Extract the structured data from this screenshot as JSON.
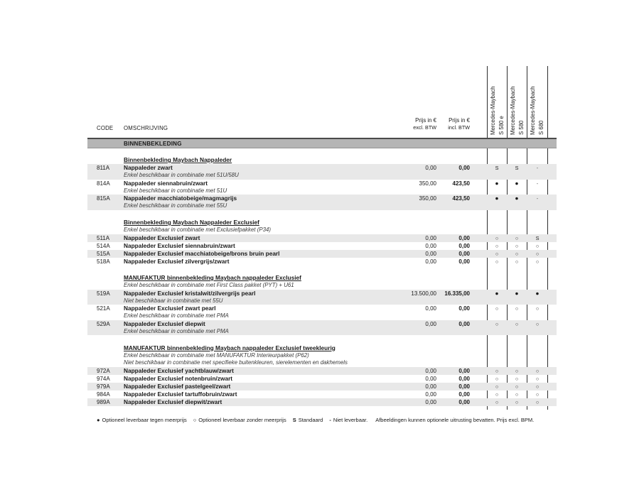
{
  "table_header": {
    "code": "CODE",
    "omschrijving": "OMSCHRIJVING",
    "price_excl": {
      "line1": "Prijs in €",
      "line2": "excl. BTW"
    },
    "price_incl": {
      "line1": "Prijs in €",
      "line2": "incl. BTW"
    },
    "models": [
      {
        "brand": "Mercedes-Maybach",
        "model": "S 580 e"
      },
      {
        "brand": "Mercedes-Maybach",
        "model": "S 580"
      },
      {
        "brand": "Mercedes-Maybach",
        "model": "S 680"
      }
    ]
  },
  "section_bar": {
    "label": "BINNENBEKLEDING"
  },
  "sections": [
    {
      "title": "Binnenbekleding Maybach Nappaleder",
      "notes": [],
      "rows": [
        {
          "code": "811A",
          "name": "Nappaleder zwart",
          "note": "Enkel beschikbaar in combinatie met 51U/58U",
          "excl": "0,00",
          "incl": "0,00",
          "availability": [
            "S",
            "S",
            "-"
          ],
          "shaded": true
        },
        {
          "code": "814A",
          "name": "Nappaleder siennabruin/zwart",
          "note": "Enkel beschikbaar in combinatie met 51U",
          "excl": "350,00",
          "incl": "423,50",
          "availability": [
            "●",
            "●",
            "-"
          ],
          "shaded": false
        },
        {
          "code": "815A",
          "name": "Nappaleder macchiatobeige/magmagrijs",
          "note": "Enkel beschikbaar in combinatie met 55U",
          "excl": "350,00",
          "incl": "423,50",
          "availability": [
            "●",
            "●",
            "-"
          ],
          "shaded": true
        }
      ]
    },
    {
      "title": "Binnenbekleding Maybach Nappaleder Exclusief",
      "notes": [
        "Enkel beschikbaar in combinatie met Exclusiefpakket (P34)"
      ],
      "rows": [
        {
          "code": "511A",
          "name": "Nappaleder Exclusief zwart",
          "note": "",
          "excl": "0,00",
          "incl": "0,00",
          "availability": [
            "○",
            "○",
            "S"
          ],
          "shaded": true
        },
        {
          "code": "514A",
          "name": "Nappaleder Exclusief siennabruin/zwart",
          "note": "",
          "excl": "0,00",
          "incl": "0,00",
          "availability": [
            "○",
            "○",
            "○"
          ],
          "shaded": false
        },
        {
          "code": "515A",
          "name": "Nappaleder Exclusief macchiatobeige/brons bruin pearl",
          "note": "",
          "excl": "0,00",
          "incl": "0,00",
          "availability": [
            "○",
            "○",
            "○"
          ],
          "shaded": true
        },
        {
          "code": "518A",
          "name": "Nappaleder Exclusief zilvergrijs/zwart",
          "note": "",
          "excl": "0,00",
          "incl": "0,00",
          "availability": [
            "○",
            "○",
            "○"
          ],
          "shaded": false
        }
      ]
    },
    {
      "title": "MANUFAKTUR binnenbekleding Maybach nappaleder Exclusief",
      "notes": [
        "Enkel beschikbaar in combinatie met First Class pakket (PYT) + U61"
      ],
      "rows": [
        {
          "code": "519A",
          "name": "Nappaleder Exclusief kristalwit/zilvergrijs pearl",
          "note": "Niet beschikbaar in combinatie met 55U",
          "excl": "13.500,00",
          "incl": "16.335,00",
          "availability": [
            "●",
            "●",
            "●"
          ],
          "shaded": true
        },
        {
          "code": "521A",
          "name": "Nappaleder Exclusief zwart pearl",
          "note": "Enkel beschikbaar in combinatie met PMA",
          "excl": "0,00",
          "incl": "0,00",
          "availability": [
            "○",
            "○",
            "○"
          ],
          "shaded": false
        },
        {
          "code": "529A",
          "name": "Nappaleder Exclusief diepwit",
          "note": "Enkel beschikbaar in combinatie met PMA",
          "excl": "0,00",
          "incl": "0,00",
          "availability": [
            "○",
            "○",
            "○"
          ],
          "shaded": true
        }
      ]
    },
    {
      "title": "MANUFAKTUR binnenbekleding Maybach nappaleder Exclusief tweekleurig",
      "notes": [
        "Enkel beschikbaar in combinatie met MANUFAKTUR Interieurpakket (P62)",
        "Niet beschikbaar in combinatie met specifieke buitenkleuren, sierelementen en dakhemels"
      ],
      "rows": [
        {
          "code": "972A",
          "name": "Nappaleder Exclusief yachtblauw/zwart",
          "note": "",
          "excl": "0,00",
          "incl": "0,00",
          "availability": [
            "○",
            "○",
            "○"
          ],
          "shaded": true
        },
        {
          "code": "974A",
          "name": "Nappaleder Exclusief notenbruin/zwart",
          "note": "",
          "excl": "0,00",
          "incl": "0,00",
          "availability": [
            "○",
            "○",
            "○"
          ],
          "shaded": false
        },
        {
          "code": "979A",
          "name": "Nappaleder Exclusief pastelgeel/zwart",
          "note": "",
          "excl": "0,00",
          "incl": "0,00",
          "availability": [
            "○",
            "○",
            "○"
          ],
          "shaded": true
        },
        {
          "code": "984A",
          "name": "Nappaleder Exclusief tartuffobruin/zwart",
          "note": "",
          "excl": "0,00",
          "incl": "0,00",
          "availability": [
            "○",
            "○",
            "○"
          ],
          "shaded": false
        },
        {
          "code": "989A",
          "name": "Nappaleder Exclusief diepwit/zwart",
          "note": "",
          "excl": "0,00",
          "incl": "0,00",
          "availability": [
            "○",
            "○",
            "○"
          ],
          "shaded": true
        }
      ]
    }
  ],
  "legend": {
    "items": [
      {
        "symbol": "●",
        "label": "Optioneel leverbaar tegen meerprijs"
      },
      {
        "symbol": "○",
        "label": "Optioneel leverbaar zonder meerprijs"
      },
      {
        "symbol": "S",
        "label": "Standaard"
      },
      {
        "symbol": "-",
        "label": "Niet leverbaar."
      }
    ],
    "trailing": "Afbeeldingen kunnen optionele uitrusting bevatten. Prijs excl. BPM."
  },
  "colors": {
    "section_bar": "#b5b5b5",
    "row_stripe": "#e8e8e8",
    "rule": "#2d2d2d",
    "text": "#1a1a1a"
  }
}
